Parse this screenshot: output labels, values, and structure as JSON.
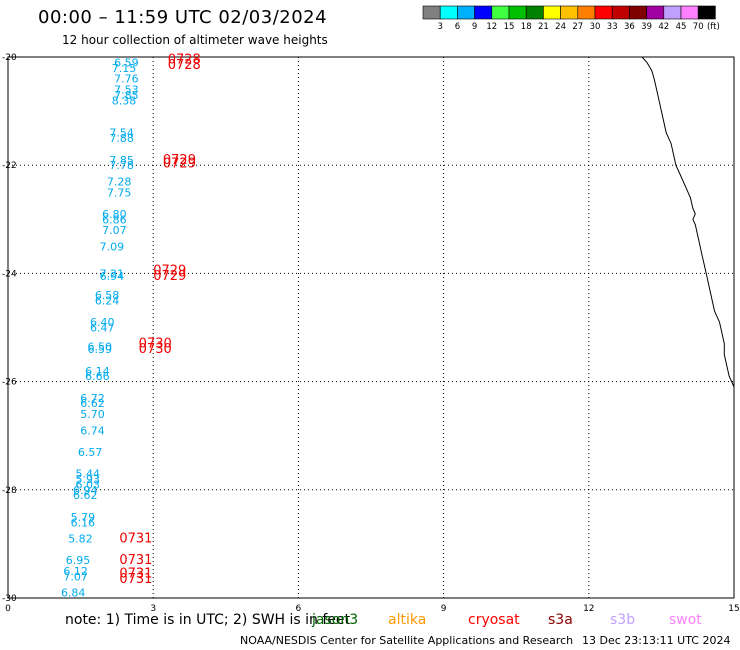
{
  "header": {
    "title": "00:00 – 11:59 UTC 02/03/2024",
    "subtitle": "12 hour collection of altimeter wave heights"
  },
  "colorbar": {
    "unit": "(ft)",
    "colors": [
      "#808080",
      "#00ffff",
      "#00b0ff",
      "#0000ff",
      "#40ff40",
      "#00c000",
      "#008000",
      "#ffff00",
      "#ffc000",
      "#ff8000",
      "#ff0000",
      "#c00000",
      "#800000",
      "#a000a0",
      "#c0a0ff",
      "#ff80ff",
      "#000000"
    ],
    "labels": [
      "3",
      "6",
      "9",
      "12",
      "15",
      "18",
      "21",
      "24",
      "27",
      "30",
      "33",
      "36",
      "39",
      "42",
      "45",
      "70"
    ]
  },
  "map": {
    "x_ticks": [
      "0",
      "3",
      "6",
      "9",
      "12",
      "15"
    ],
    "y_ticks": [
      "-20",
      "-22",
      "-24",
      "-26",
      "-28",
      "-30"
    ],
    "xlim": [
      0,
      15
    ],
    "ylim": [
      -30,
      -20
    ]
  },
  "observations": [
    {
      "x": 2.7,
      "y": -20.1,
      "text": "6.59"
    },
    {
      "x": 2.65,
      "y": -20.2,
      "text": "7.15"
    },
    {
      "x": 2.7,
      "y": -20.4,
      "text": "7.76"
    },
    {
      "x": 2.7,
      "y": -20.6,
      "text": "7.53"
    },
    {
      "x": 2.7,
      "y": -20.7,
      "text": "7.85"
    },
    {
      "x": 2.65,
      "y": -20.8,
      "text": "8.38"
    },
    {
      "x": 2.6,
      "y": -21.4,
      "text": "7.54"
    },
    {
      "x": 2.6,
      "y": -21.5,
      "text": "7.88"
    },
    {
      "x": 2.6,
      "y": -21.9,
      "text": "7.85"
    },
    {
      "x": 2.6,
      "y": -22.0,
      "text": "7.78"
    },
    {
      "x": 2.55,
      "y": -22.3,
      "text": "7.28"
    },
    {
      "x": 2.55,
      "y": -22.5,
      "text": "7.75"
    },
    {
      "x": 2.45,
      "y": -22.9,
      "text": "6.80"
    },
    {
      "x": 2.45,
      "y": -23.0,
      "text": "6.86"
    },
    {
      "x": 2.45,
      "y": -23.2,
      "text": "7.07"
    },
    {
      "x": 2.4,
      "y": -23.5,
      "text": "7.09"
    },
    {
      "x": 2.4,
      "y": -24.0,
      "text": "7.21"
    },
    {
      "x": 2.4,
      "y": -24.05,
      "text": "6.94"
    },
    {
      "x": 2.3,
      "y": -24.4,
      "text": "6.58"
    },
    {
      "x": 2.3,
      "y": -24.5,
      "text": "6.24"
    },
    {
      "x": 2.2,
      "y": -24.9,
      "text": "6.40"
    },
    {
      "x": 2.2,
      "y": -25.0,
      "text": "6.47"
    },
    {
      "x": 2.15,
      "y": -25.35,
      "text": "6.50"
    },
    {
      "x": 2.15,
      "y": -25.4,
      "text": "6.59"
    },
    {
      "x": 2.1,
      "y": -25.8,
      "text": "6.14"
    },
    {
      "x": 2.1,
      "y": -25.9,
      "text": "6.66"
    },
    {
      "x": 2.0,
      "y": -26.3,
      "text": "6.72"
    },
    {
      "x": 2.0,
      "y": -26.4,
      "text": "6.62"
    },
    {
      "x": 2.0,
      "y": -26.6,
      "text": "5.70"
    },
    {
      "x": 2.0,
      "y": -26.9,
      "text": "6.74"
    },
    {
      "x": 1.95,
      "y": -27.3,
      "text": "6.57"
    },
    {
      "x": 1.9,
      "y": -27.7,
      "text": "5.44"
    },
    {
      "x": 1.9,
      "y": -27.8,
      "text": "5.93"
    },
    {
      "x": 1.9,
      "y": -27.9,
      "text": "6.03"
    },
    {
      "x": 1.85,
      "y": -28.0,
      "text": "6.94"
    },
    {
      "x": 1.85,
      "y": -28.1,
      "text": "6.62"
    },
    {
      "x": 1.8,
      "y": -28.5,
      "text": "5.79"
    },
    {
      "x": 1.8,
      "y": -28.6,
      "text": "6.16"
    },
    {
      "x": 1.75,
      "y": -28.9,
      "text": "5.82"
    },
    {
      "x": 1.7,
      "y": -29.3,
      "text": "6.95"
    },
    {
      "x": 1.65,
      "y": -29.5,
      "text": "6.12"
    },
    {
      "x": 1.65,
      "y": -29.6,
      "text": "7.07"
    },
    {
      "x": 1.6,
      "y": -29.9,
      "text": "6.84"
    }
  ],
  "pass_times": [
    {
      "x": 3.3,
      "y": -20.05,
      "text": "0728"
    },
    {
      "x": 3.3,
      "y": -20.15,
      "text": "0728"
    },
    {
      "x": 3.2,
      "y": -21.9,
      "text": "0729"
    },
    {
      "x": 3.2,
      "y": -21.97,
      "text": "0729"
    },
    {
      "x": 3.0,
      "y": -23.95,
      "text": "0729"
    },
    {
      "x": 3.0,
      "y": -24.05,
      "text": "0729"
    },
    {
      "x": 2.7,
      "y": -25.3,
      "text": "0730"
    },
    {
      "x": 2.7,
      "y": -25.4,
      "text": "0730"
    },
    {
      "x": 2.3,
      "y": -28.9,
      "text": "0731"
    },
    {
      "x": 2.3,
      "y": -29.3,
      "text": "0731"
    },
    {
      "x": 2.3,
      "y": -29.55,
      "text": "0731"
    },
    {
      "x": 2.3,
      "y": -29.65,
      "text": "0731"
    }
  ],
  "coastline": [
    [
      13.1,
      -20.0
    ],
    [
      13.2,
      -20.1
    ],
    [
      13.3,
      -20.25
    ],
    [
      13.35,
      -20.4
    ],
    [
      13.4,
      -20.6
    ],
    [
      13.45,
      -20.8
    ],
    [
      13.5,
      -21.0
    ],
    [
      13.55,
      -21.2
    ],
    [
      13.6,
      -21.4
    ],
    [
      13.7,
      -21.6
    ],
    [
      13.75,
      -21.8
    ],
    [
      13.8,
      -22.0
    ],
    [
      13.9,
      -22.2
    ],
    [
      14.0,
      -22.4
    ],
    [
      14.1,
      -22.6
    ],
    [
      14.15,
      -22.8
    ],
    [
      14.2,
      -22.9
    ],
    [
      14.15,
      -23.0
    ],
    [
      14.2,
      -23.1
    ],
    [
      14.25,
      -23.3
    ],
    [
      14.3,
      -23.5
    ],
    [
      14.35,
      -23.7
    ],
    [
      14.4,
      -23.9
    ],
    [
      14.45,
      -24.1
    ],
    [
      14.5,
      -24.3
    ],
    [
      14.55,
      -24.5
    ],
    [
      14.6,
      -24.7
    ],
    [
      14.7,
      -24.9
    ],
    [
      14.75,
      -25.1
    ],
    [
      14.8,
      -25.3
    ],
    [
      14.8,
      -25.5
    ],
    [
      14.85,
      -25.7
    ],
    [
      14.9,
      -25.9
    ],
    [
      14.95,
      -26.0
    ],
    [
      15.0,
      -26.1
    ]
  ],
  "footer": {
    "note": "note: 1) Time is in UTC; 2) SWH is in feet",
    "satellites": [
      {
        "name": "jason3",
        "color": "#006400"
      },
      {
        "name": "altika",
        "color": "#ff9900"
      },
      {
        "name": "cryosat",
        "color": "#ff0000"
      },
      {
        "name": "s3a",
        "color": "#8b0000"
      },
      {
        "name": "s3b",
        "color": "#c0a0ff"
      },
      {
        "name": "swot",
        "color": "#ff80ff"
      }
    ],
    "credit": "NOAA/NESDIS Center for Satellite Applications and Research",
    "stamp": "13 Dec 23:13:11 UTC 2024"
  }
}
